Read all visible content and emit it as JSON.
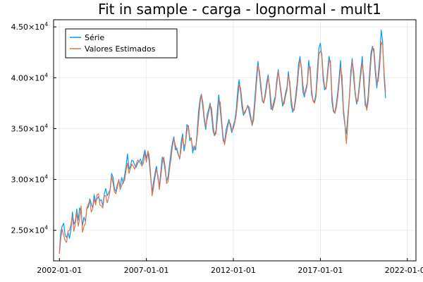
{
  "chart_data": {
    "type": "line",
    "title": "Fit in sample - carga - lognormal - mult1",
    "xlabel": "",
    "ylabel": "",
    "x_tick_labels": [
      "2002-01-01",
      "2007-01-01",
      "2012-01-01",
      "2017-01-01",
      "2022-01-01"
    ],
    "x_ticks_dates": [
      "2002-01-01",
      "2007-01-01",
      "2012-01-01",
      "2017-01-01",
      "2022-01-01"
    ],
    "xlim": [
      "2001-09-01",
      "2022-07-01"
    ],
    "ylim": [
      22000,
      45700
    ],
    "y_ticks": [
      {
        "value": 25000,
        "mantissa": "2.50",
        "exp": "4"
      },
      {
        "value": 30000,
        "mantissa": "3.00",
        "exp": "4"
      },
      {
        "value": 35000,
        "mantissa": "3.50",
        "exp": "4"
      },
      {
        "value": 40000,
        "mantissa": "4.00",
        "exp": "4"
      },
      {
        "value": 45000,
        "mantissa": "4.50",
        "exp": "4"
      }
    ],
    "y_tick_times": "×10",
    "grid": true,
    "legend_position": "top-left",
    "x_start": "2002-01-01",
    "x_frequency": "monthly",
    "series": [
      {
        "name": "Série",
        "color": "#009af9",
        "values": [
          22800,
          24900,
          25400,
          25700,
          24500,
          24300,
          24800,
          24200,
          25100,
          26800,
          25600,
          25900,
          27100,
          26000,
          27200,
          26800,
          25500,
          26300,
          25900,
          27100,
          27300,
          28100,
          27600,
          27200,
          28500,
          27800,
          28100,
          28300,
          27900,
          28000,
          27400,
          28600,
          29100,
          28400,
          28700,
          29000,
          30600,
          30200,
          29100,
          28800,
          29500,
          29900,
          29300,
          30200,
          29600,
          30400,
          31300,
          32500,
          31000,
          31300,
          31900,
          31800,
          31400,
          31200,
          31600,
          31800,
          32000,
          31500,
          32300,
          32900,
          32100,
          32600,
          31800,
          30200,
          28700,
          29800,
          30600,
          31300,
          30100,
          29300,
          30800,
          32200,
          31800,
          30800,
          29800,
          30300,
          31500,
          32700,
          33600,
          34200,
          32900,
          33100,
          32500,
          32000,
          33700,
          34500,
          32800,
          33600,
          35400,
          35100,
          33800,
          34100,
          32600,
          33300,
          32900,
          34600,
          36700,
          37900,
          38400,
          37100,
          35800,
          34900,
          36400,
          36900,
          37500,
          36300,
          34800,
          34300,
          34800,
          36900,
          38300,
          36800,
          35400,
          33800,
          33600,
          34900,
          35400,
          35900,
          35200,
          34600,
          35300,
          35800,
          36800,
          38700,
          39800,
          38600,
          37100,
          36300,
          36700,
          36900,
          37300,
          36600,
          35900,
          35300,
          36400,
          38200,
          40100,
          41600,
          40300,
          38900,
          37700,
          37500,
          38500,
          39500,
          40300,
          38800,
          36900,
          37000,
          37700,
          38200,
          39800,
          40800,
          39400,
          38300,
          37200,
          37700,
          38500,
          39100,
          40600,
          39200,
          37300,
          36600,
          37000,
          38200,
          39500,
          41300,
          42100,
          40800,
          38600,
          38100,
          38900,
          39500,
          41700,
          40600,
          38300,
          37800,
          37600,
          38500,
          40900,
          42900,
          43400,
          42000,
          39800,
          38800,
          39000,
          40600,
          42100,
          41300,
          37700,
          36700,
          36500,
          37400,
          38600,
          40100,
          41700,
          39200,
          36500,
          35300,
          34500,
          36300,
          38000,
          40600,
          41900,
          40000,
          38400,
          37400,
          38000,
          39400,
          40800,
          42100,
          39400,
          37300,
          37000,
          38200,
          40500,
          42500,
          43100,
          42400,
          40400,
          39000,
          40300,
          42000,
          44700,
          43500,
          40000,
          38000
        ]
      },
      {
        "name": "Valores Estimados",
        "color": "#e26f46",
        "values": [
          22700,
          24300,
          25100,
          24500,
          24000,
          23800,
          24900,
          25000,
          25600,
          26400,
          24900,
          25600,
          26800,
          25400,
          26100,
          27400,
          24800,
          25400,
          25700,
          27200,
          27600,
          27900,
          26800,
          27100,
          28100,
          27500,
          28500,
          28600,
          27500,
          27400,
          27200,
          28400,
          28400,
          27700,
          28200,
          28900,
          30300,
          29600,
          28800,
          28600,
          29200,
          30000,
          29000,
          29400,
          29800,
          29900,
          30900,
          31600,
          30600,
          31100,
          31500,
          31300,
          31000,
          31500,
          31900,
          31800,
          31600,
          31300,
          31600,
          32600,
          31700,
          32800,
          32400,
          30500,
          28400,
          29200,
          30200,
          31000,
          30400,
          29000,
          30300,
          31600,
          32200,
          31200,
          29600,
          29800,
          31000,
          32000,
          33200,
          34000,
          33400,
          32900,
          32400,
          32100,
          33000,
          34200,
          33300,
          33500,
          34700,
          35300,
          34100,
          33900,
          33100,
          32900,
          33200,
          34100,
          35800,
          37500,
          38300,
          37600,
          36100,
          35200,
          35900,
          36600,
          37300,
          37000,
          35400,
          34300,
          34500,
          35900,
          37800,
          37600,
          35800,
          34200,
          33400,
          34300,
          35100,
          35700,
          35500,
          34800,
          35000,
          35600,
          36300,
          37800,
          39300,
          39000,
          37700,
          36600,
          36500,
          36900,
          37200,
          37100,
          36200,
          35400,
          35800,
          37500,
          39400,
          41200,
          40700,
          39400,
          37900,
          37500,
          38100,
          39100,
          40000,
          39200,
          37700,
          36800,
          37300,
          38000,
          39300,
          40600,
          39700,
          38600,
          37500,
          37400,
          38200,
          38800,
          40200,
          39600,
          37900,
          36900,
          36800,
          37700,
          39000,
          40600,
          41800,
          41100,
          39300,
          38400,
          38600,
          39300,
          41000,
          41100,
          38800,
          37700,
          37500,
          38100,
          40000,
          42300,
          42600,
          42400,
          40300,
          39100,
          38900,
          40100,
          41600,
          41700,
          38400,
          36900,
          36500,
          37000,
          38100,
          39600,
          41000,
          40200,
          37000,
          35500,
          33500,
          35700,
          37800,
          40000,
          41600,
          40700,
          38700,
          37600,
          37700,
          39000,
          40300,
          41500,
          40300,
          37800,
          36800,
          37600,
          39700,
          41800,
          43000,
          42800,
          41000,
          39400,
          39700,
          41200,
          43500,
          43200,
          40500,
          38600
        ]
      }
    ]
  }
}
